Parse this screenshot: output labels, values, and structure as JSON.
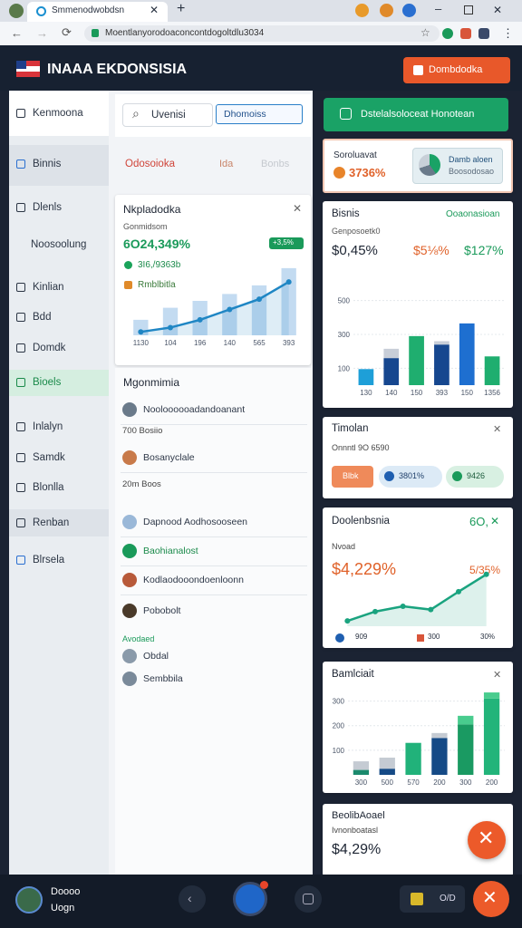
{
  "browser": {
    "tab_title": "Smmenodwobdsn",
    "url": "Moentlanyorodoaconcontdogoltdlu3034"
  },
  "header": {
    "title": "INAAA EKDONSISIA",
    "button": "Dombdodka"
  },
  "sidebar": {
    "items": [
      "Kenmoona",
      "Binnis",
      "Dlenls",
      "Noosoolung",
      "Kinlian",
      "Bdd",
      "Domdk",
      "Bioels",
      "Inlalyn",
      "Samdk",
      "Blonlla",
      "Renban",
      "Blrsela"
    ]
  },
  "search": {
    "placeholder": "Uvenisi",
    "button": "Dhomoiss"
  },
  "tabs": [
    "Odosoioka",
    "Ida",
    "Bonbs"
  ],
  "overview": {
    "title": "Nkpladodka",
    "subtitle": "Gonmidsom",
    "value": "6O24,349%",
    "change": "3I6,/9363b",
    "note": "Rmblbitla",
    "badge": "+3,5%",
    "chart": {
      "type": "combo",
      "categories": [
        "1130",
        "104",
        "196",
        "140",
        "565",
        "393"
      ],
      "ylim": [
        0,
        100
      ],
      "bars": {
        "color": "#b8d5ef",
        "values": [
          18,
          32,
          40,
          48,
          58,
          78
        ]
      },
      "line": {
        "color": "#1f86c4",
        "values": [
          4,
          9,
          18,
          30,
          42,
          62
        ]
      }
    }
  },
  "list": {
    "title": "Mgonmimia",
    "items": [
      "Nooloooooadandoanant",
      "700 Bosiio",
      "Bosanyclale",
      "20m Boos",
      "Dapnood Aodhosooseen",
      "Baohianalost",
      "Kodlaodooondoenloonn",
      "Pobobolt",
      "Avodaed",
      "Obdal",
      "Sembbila"
    ]
  },
  "right": {
    "button": "Dstelalsoloceat Honotean",
    "card1": {
      "label": "Soroluavat",
      "value": "3736%",
      "widget_title": "Damb aloen",
      "widget_sub": "Boosodosao"
    },
    "card2": {
      "title": "Bisnis",
      "link": "Ooaonasioan",
      "sub": "Genposoetk0",
      "stats": [
        "$0,45%",
        "$5⅛%",
        "$127%"
      ],
      "chart": {
        "type": "bar",
        "categories": [
          "130",
          "140",
          "150",
          "393",
          "150",
          "1356"
        ],
        "ylim": [
          0,
          600
        ],
        "yticks": [
          100,
          300,
          500
        ],
        "series": [
          {
            "colors": [
              "#1e9fd8",
              "#16478f",
              "#1fae6f",
              "#16478f",
              "#1e6fd0",
              "#1fae6f"
            ],
            "values": [
              95,
              160,
              290,
              240,
              365,
              170
            ]
          },
          {
            "colors": [
              "#c8ced8",
              "#c8ced8",
              "#c8ced8",
              "#c8ced8",
              "#c8ced8",
              "#c8ced8"
            ],
            "values": [
              null,
              55,
              null,
              20,
              null,
              null
            ]
          }
        ]
      }
    },
    "card3": {
      "title": "Timolan",
      "sub": "Onnntl 9O 6590",
      "pills": [
        "Blbk",
        "3801%",
        "9426"
      ]
    },
    "card4": {
      "title": "Doolenbsnia",
      "corner": "6O,",
      "sub": "Nvoad",
      "value": "$4,229%",
      "change": "5/35%",
      "chart": {
        "type": "line",
        "color": "#1aa37f",
        "ylim": [
          0,
          90
        ],
        "values": [
          8,
          22,
          30,
          25,
          52,
          78
        ]
      },
      "footer": [
        "909",
        "300",
        "30%"
      ]
    },
    "card5": {
      "title": "Bamlciait",
      "chart": {
        "type": "bar",
        "categories": [
          "300",
          "500",
          "570",
          "200",
          "300",
          "200"
        ],
        "ylim": [
          0,
          350
        ],
        "yticks": [
          100,
          200,
          300
        ],
        "series": [
          {
            "colors": [
              "#1b8a6d",
              "#154a86",
              "#21b27a",
              "#154a86",
              "#1a9a62",
              "#22b47a"
            ],
            "values": [
              20,
              25,
              130,
              150,
              205,
              310
            ]
          },
          {
            "colors": [
              "#c5cbd3",
              "#c5cbd3",
              "#c5cbd3",
              "#c5cbd3",
              "#49cc8e",
              "#49cc8e"
            ],
            "values": [
              35,
              45,
              null,
              20,
              35,
              25
            ]
          }
        ]
      }
    },
    "card6": {
      "title": "BeolibAoael",
      "sub": "Ivnonboatasl",
      "value": "$4,29%"
    }
  },
  "bottom": {
    "user": [
      "Doooo",
      "Uogn"
    ],
    "pill": "O/D"
  }
}
